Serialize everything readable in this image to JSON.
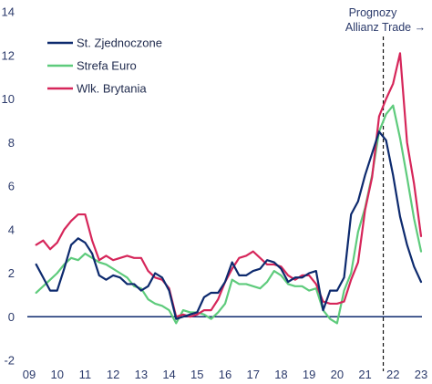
{
  "chart_data": {
    "type": "line",
    "title": "",
    "xlabel": "",
    "ylabel": "",
    "xlim": [
      2009,
      2023.2
    ],
    "ylim": [
      -2,
      14
    ],
    "x_ticks": [
      2009,
      2010,
      2011,
      2012,
      2013,
      2014,
      2015,
      2016,
      2017,
      2018,
      2019,
      2020,
      2021,
      2022,
      2023
    ],
    "x_tick_labels": [
      "09",
      "10",
      "11",
      "12",
      "13",
      "14",
      "15",
      "16",
      "17",
      "18",
      "19",
      "20",
      "21",
      "22",
      "23"
    ],
    "y_ticks": [
      -2,
      0,
      2,
      4,
      6,
      8,
      10,
      12,
      14
    ],
    "y_tick_labels": [
      "-2",
      "0",
      "2",
      "4",
      "6",
      "8",
      "10",
      "12",
      "14"
    ],
    "grid": false,
    "zero_line": true,
    "legend_position": "top-left",
    "forecast_start": 2021.65,
    "annotation": {
      "line1": "Prognozy",
      "line2": "Allianz Trade →"
    },
    "series": [
      {
        "name": "St. Zjednoczone",
        "color": "#0d2a6e",
        "points": [
          [
            2009.25,
            2.4
          ],
          [
            2009.5,
            1.8
          ],
          [
            2009.75,
            1.2
          ],
          [
            2010.0,
            1.2
          ],
          [
            2010.25,
            2.2
          ],
          [
            2010.5,
            3.3
          ],
          [
            2010.75,
            3.6
          ],
          [
            2011.0,
            3.4
          ],
          [
            2011.25,
            2.9
          ],
          [
            2011.5,
            1.9
          ],
          [
            2011.75,
            1.7
          ],
          [
            2012.0,
            1.9
          ],
          [
            2012.25,
            1.8
          ],
          [
            2012.5,
            1.5
          ],
          [
            2012.75,
            1.5
          ],
          [
            2013.0,
            1.2
          ],
          [
            2013.25,
            1.4
          ],
          [
            2013.5,
            2.0
          ],
          [
            2013.75,
            1.8
          ],
          [
            2014.0,
            1.2
          ],
          [
            2014.25,
            -0.1
          ],
          [
            2014.5,
            0.0
          ],
          [
            2014.75,
            0.1
          ],
          [
            2015.0,
            0.2
          ],
          [
            2015.25,
            0.9
          ],
          [
            2015.5,
            1.1
          ],
          [
            2015.75,
            1.1
          ],
          [
            2016.0,
            1.6
          ],
          [
            2016.25,
            2.5
          ],
          [
            2016.5,
            1.9
          ],
          [
            2016.75,
            1.9
          ],
          [
            2017.0,
            2.1
          ],
          [
            2017.25,
            2.2
          ],
          [
            2017.5,
            2.6
          ],
          [
            2017.75,
            2.5
          ],
          [
            2018.0,
            2.2
          ],
          [
            2018.25,
            1.6
          ],
          [
            2018.5,
            1.8
          ],
          [
            2018.75,
            1.8
          ],
          [
            2019.0,
            2.0
          ],
          [
            2019.25,
            2.1
          ],
          [
            2019.5,
            0.3
          ],
          [
            2019.75,
            1.2
          ],
          [
            2020.0,
            1.2
          ],
          [
            2020.25,
            1.8
          ],
          [
            2020.5,
            4.7
          ],
          [
            2020.75,
            5.3
          ],
          [
            2021.0,
            6.5
          ],
          [
            2021.25,
            7.5
          ],
          [
            2021.5,
            8.5
          ],
          [
            2021.75,
            8.1
          ],
          [
            2022.0,
            6.5
          ],
          [
            2022.25,
            4.6
          ],
          [
            2022.5,
            3.3
          ],
          [
            2022.75,
            2.3
          ],
          [
            2023.0,
            1.6
          ]
        ]
      },
      {
        "name": "Strefa Euro",
        "color": "#5ecb7c",
        "points": [
          [
            2009.25,
            1.1
          ],
          [
            2009.5,
            1.4
          ],
          [
            2009.75,
            1.7
          ],
          [
            2010.0,
            2.0
          ],
          [
            2010.25,
            2.4
          ],
          [
            2010.5,
            2.7
          ],
          [
            2010.75,
            2.6
          ],
          [
            2011.0,
            2.9
          ],
          [
            2011.25,
            2.7
          ],
          [
            2011.5,
            2.5
          ],
          [
            2011.75,
            2.4
          ],
          [
            2012.0,
            2.2
          ],
          [
            2012.25,
            2.0
          ],
          [
            2012.5,
            1.8
          ],
          [
            2012.75,
            1.4
          ],
          [
            2013.0,
            1.3
          ],
          [
            2013.25,
            0.8
          ],
          [
            2013.5,
            0.6
          ],
          [
            2013.75,
            0.5
          ],
          [
            2014.0,
            0.3
          ],
          [
            2014.25,
            -0.3
          ],
          [
            2014.5,
            0.3
          ],
          [
            2014.75,
            0.2
          ],
          [
            2015.0,
            0.2
          ],
          [
            2015.25,
            0.1
          ],
          [
            2015.5,
            -0.1
          ],
          [
            2015.75,
            0.2
          ],
          [
            2016.0,
            0.6
          ],
          [
            2016.25,
            1.7
          ],
          [
            2016.5,
            1.5
          ],
          [
            2016.75,
            1.5
          ],
          [
            2017.0,
            1.4
          ],
          [
            2017.25,
            1.3
          ],
          [
            2017.5,
            1.6
          ],
          [
            2017.75,
            2.1
          ],
          [
            2018.0,
            1.9
          ],
          [
            2018.25,
            1.5
          ],
          [
            2018.5,
            1.4
          ],
          [
            2018.75,
            1.4
          ],
          [
            2019.0,
            1.2
          ],
          [
            2019.25,
            1.3
          ],
          [
            2019.5,
            0.3
          ],
          [
            2019.75,
            -0.1
          ],
          [
            2020.0,
            -0.3
          ],
          [
            2020.25,
            1.2
          ],
          [
            2020.5,
            2.0
          ],
          [
            2020.75,
            3.9
          ],
          [
            2021.0,
            5.0
          ],
          [
            2021.25,
            6.5
          ],
          [
            2021.5,
            8.5
          ],
          [
            2021.75,
            9.3
          ],
          [
            2022.0,
            9.7
          ],
          [
            2022.25,
            8.2
          ],
          [
            2022.5,
            6.4
          ],
          [
            2022.75,
            4.5
          ],
          [
            2023.0,
            3.0
          ]
        ]
      },
      {
        "name": "Wlk. Brytania",
        "color": "#d6265a",
        "points": [
          [
            2009.25,
            3.3
          ],
          [
            2009.5,
            3.5
          ],
          [
            2009.75,
            3.1
          ],
          [
            2010.0,
            3.4
          ],
          [
            2010.25,
            4.0
          ],
          [
            2010.5,
            4.4
          ],
          [
            2010.75,
            4.7
          ],
          [
            2011.0,
            4.7
          ],
          [
            2011.25,
            3.5
          ],
          [
            2011.5,
            2.6
          ],
          [
            2011.75,
            2.8
          ],
          [
            2012.0,
            2.6
          ],
          [
            2012.25,
            2.7
          ],
          [
            2012.5,
            2.8
          ],
          [
            2012.75,
            2.7
          ],
          [
            2013.0,
            2.7
          ],
          [
            2013.25,
            2.1
          ],
          [
            2013.5,
            1.8
          ],
          [
            2013.75,
            1.7
          ],
          [
            2014.0,
            1.3
          ],
          [
            2014.25,
            0.0
          ],
          [
            2014.5,
            0.1
          ],
          [
            2014.75,
            0.0
          ],
          [
            2015.0,
            0.1
          ],
          [
            2015.25,
            0.3
          ],
          [
            2015.5,
            0.3
          ],
          [
            2015.75,
            0.8
          ],
          [
            2016.0,
            1.6
          ],
          [
            2016.25,
            2.2
          ],
          [
            2016.5,
            2.7
          ],
          [
            2016.75,
            2.8
          ],
          [
            2017.0,
            3.0
          ],
          [
            2017.25,
            2.7
          ],
          [
            2017.5,
            2.4
          ],
          [
            2017.75,
            2.4
          ],
          [
            2018.0,
            2.3
          ],
          [
            2018.25,
            1.9
          ],
          [
            2018.5,
            1.7
          ],
          [
            2018.75,
            1.9
          ],
          [
            2019.0,
            1.9
          ],
          [
            2019.25,
            1.5
          ],
          [
            2019.5,
            0.7
          ],
          [
            2019.75,
            0.6
          ],
          [
            2020.0,
            0.6
          ],
          [
            2020.25,
            0.7
          ],
          [
            2020.5,
            1.7
          ],
          [
            2020.75,
            2.5
          ],
          [
            2021.0,
            4.9
          ],
          [
            2021.25,
            6.4
          ],
          [
            2021.5,
            9.2
          ],
          [
            2021.75,
            10.0
          ],
          [
            2022.0,
            10.7
          ],
          [
            2022.25,
            12.1
          ],
          [
            2022.5,
            8.0
          ],
          [
            2022.75,
            6.1
          ],
          [
            2023.0,
            3.7
          ]
        ]
      }
    ]
  }
}
